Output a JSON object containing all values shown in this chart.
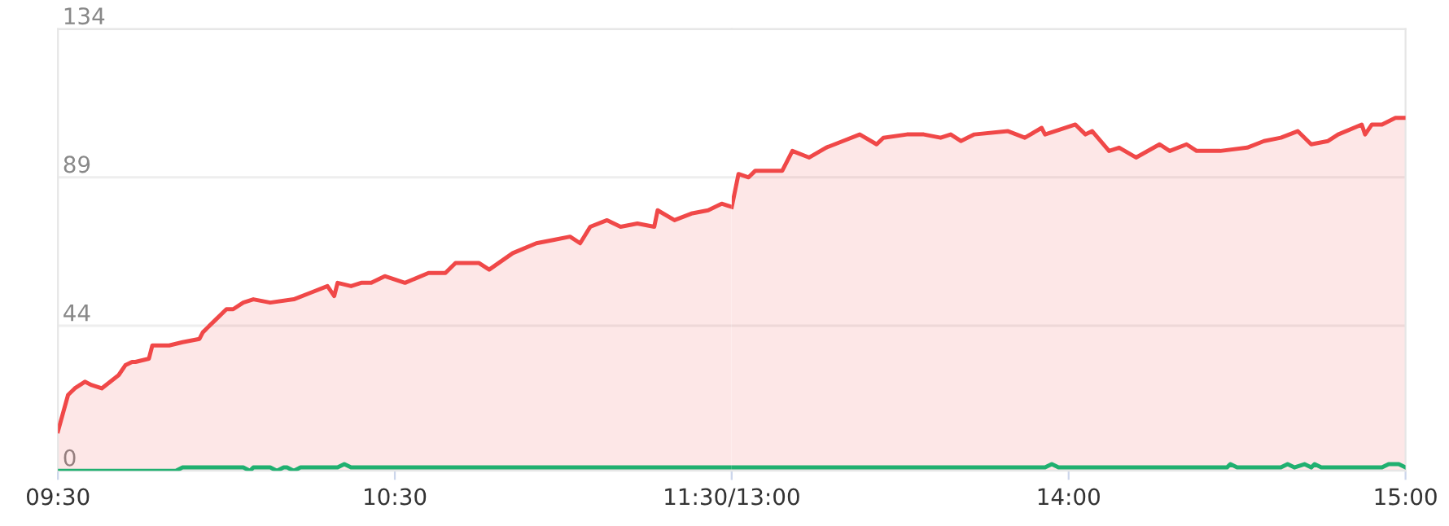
{
  "chart_data": [
    {
      "type": "area",
      "xlim": [
        9.5,
        11.5
      ],
      "ylim": [
        0,
        134
      ],
      "xticks": [
        {
          "value": 9.5,
          "label": "09:30"
        },
        {
          "value": 10.5,
          "label": "10:30"
        },
        {
          "value": 11.5,
          "label": "11:30/13:00"
        }
      ],
      "yticks": [
        0,
        44,
        89,
        134
      ],
      "grid": "y",
      "series": [
        {
          "color": "#f04848",
          "x": [
            9.5,
            9.53,
            9.55,
            9.58,
            9.6,
            9.63,
            9.68,
            9.7,
            9.72,
            9.73,
            9.77,
            9.78,
            9.83,
            9.87,
            9.92,
            9.93,
            9.97,
            10,
            10.02,
            10.05,
            10.08,
            10.13,
            10.2,
            10.25,
            10.3,
            10.32,
            10.33,
            10.37,
            10.4,
            10.43,
            10.47,
            10.53,
            10.6,
            10.65,
            10.68,
            10.75,
            10.78,
            10.85,
            10.92,
            10.97,
            11.02,
            11.05,
            11.08,
            11.13,
            11.17,
            11.22,
            11.27,
            11.28,
            11.33,
            11.38,
            11.43,
            11.47,
            11.5
          ],
          "values": [
            12,
            23,
            25,
            27,
            26,
            25,
            29,
            32,
            33,
            33,
            34,
            38,
            38,
            39,
            40,
            42,
            46,
            49,
            49,
            51,
            52,
            51,
            52,
            54,
            56,
            53,
            57,
            56,
            57,
            57,
            59,
            57,
            60,
            60,
            63,
            63,
            61,
            66,
            69,
            70,
            71,
            69,
            74,
            76,
            74,
            75,
            74,
            79,
            76,
            78,
            79,
            81,
            80
          ]
        },
        {
          "type": "line",
          "color": "#20b070",
          "x": [
            9.5,
            9.85,
            9.87,
            10.05,
            10.07,
            10.08,
            10.13,
            10.15,
            10.17,
            10.18,
            10.2,
            10.22,
            10.33,
            10.35,
            10.37,
            11.5
          ],
          "values": [
            0,
            0,
            1,
            1,
            0,
            1,
            1,
            0,
            1,
            1,
            0,
            1,
            1,
            2,
            1,
            1
          ]
        }
      ]
    },
    {
      "type": "area",
      "xlim": [
        13,
        15
      ],
      "ylim": [
        0,
        134
      ],
      "xticks": [
        {
          "value": 13,
          "label": null
        },
        {
          "value": 14,
          "label": "14:00"
        },
        {
          "value": 15,
          "label": "15:00"
        }
      ],
      "yticks": [
        0,
        44,
        89,
        134
      ],
      "tick_labels": "x",
      "grid": "y",
      "series": [
        {
          "color": "#f04848",
          "x": [
            13,
            13.02,
            13.05,
            13.07,
            13.12,
            13.15,
            13.18,
            13.23,
            13.28,
            13.33,
            13.38,
            13.43,
            13.45,
            13.52,
            13.57,
            13.62,
            13.65,
            13.68,
            13.72,
            13.82,
            13.87,
            13.92,
            13.93,
            14.02,
            14.05,
            14.07,
            14.12,
            14.15,
            14.2,
            14.27,
            14.3,
            14.35,
            14.38,
            14.45,
            14.53,
            14.58,
            14.63,
            14.68,
            14.72,
            14.77,
            14.8,
            14.87,
            14.88,
            14.9,
            14.93,
            14.97,
            15
          ],
          "values": [
            80,
            90,
            89,
            91,
            91,
            91,
            97,
            95,
            98,
            100,
            102,
            99,
            101,
            102,
            102,
            101,
            102,
            100,
            102,
            103,
            101,
            104,
            102,
            105,
            102,
            103,
            97,
            98,
            95,
            99,
            97,
            99,
            97,
            97,
            98,
            100,
            101,
            103,
            99,
            100,
            102,
            105,
            102,
            105,
            105,
            107,
            107
          ]
        },
        {
          "type": "line",
          "color": "#20b070",
          "x": [
            13,
            13.93,
            13.95,
            13.97,
            14.47,
            14.48,
            14.5,
            14.63,
            14.65,
            14.67,
            14.7,
            14.72,
            14.73,
            14.75,
            14.93,
            14.95,
            14.98,
            15
          ],
          "values": [
            1,
            1,
            2,
            1,
            1,
            2,
            1,
            1,
            2,
            1,
            2,
            1,
            2,
            1,
            1,
            2,
            2,
            1
          ]
        }
      ]
    }
  ]
}
